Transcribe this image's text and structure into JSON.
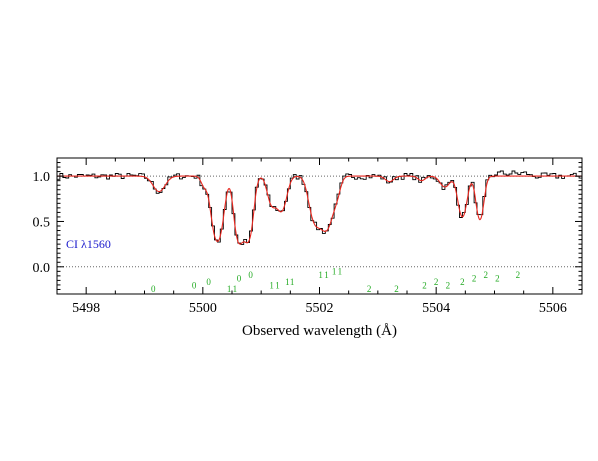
{
  "chart_data": {
    "type": "line",
    "title": "",
    "xlabel": "Observed wavelength (Å)",
    "ylabel": "",
    "xlim": [
      5497.5,
      5506.5
    ],
    "ylim": [
      -0.3,
      1.2
    ],
    "x_ticks": [
      "5498",
      "5500",
      "5502",
      "5504",
      "5506"
    ],
    "x_tick_values": [
      5498,
      5500,
      5502,
      5504,
      5506
    ],
    "y_ticks": [
      "0.0",
      "0.5",
      "1.0"
    ],
    "y_tick_values": [
      0.0,
      0.5,
      1.0
    ],
    "reference_lines": [
      0.0,
      1.0
    ],
    "annotation": "CI λ1560",
    "colors": {
      "data": "#000000",
      "model": "#e8261e",
      "component_markers": "#22aa22",
      "annotation": "#1a1acc",
      "reference": "#666666"
    },
    "continuum_level": 1.0,
    "absorption_features": [
      {
        "center": 5499.25,
        "depth": 0.17,
        "width": 0.1
      },
      {
        "center": 5500.02,
        "depth": 0.1,
        "width": 0.05
      },
      {
        "center": 5500.25,
        "depth": 0.72,
        "width": 0.085
      },
      {
        "center": 5500.62,
        "depth": 0.72,
        "width": 0.07
      },
      {
        "center": 5500.78,
        "depth": 0.7,
        "width": 0.07
      },
      {
        "center": 5501.18,
        "depth": 0.3,
        "width": 0.07
      },
      {
        "center": 5501.35,
        "depth": 0.38,
        "width": 0.08
      },
      {
        "center": 5501.92,
        "depth": 0.48,
        "width": 0.09
      },
      {
        "center": 5502.12,
        "depth": 0.58,
        "width": 0.1
      },
      {
        "center": 5502.3,
        "depth": 0.15,
        "width": 0.06
      },
      {
        "center": 5503.2,
        "depth": 0.06,
        "width": 0.07
      },
      {
        "center": 5503.75,
        "depth": 0.05,
        "width": 0.06
      },
      {
        "center": 5504.15,
        "depth": 0.12,
        "width": 0.08
      },
      {
        "center": 5504.45,
        "depth": 0.45,
        "width": 0.07
      },
      {
        "center": 5504.75,
        "depth": 0.48,
        "width": 0.06
      }
    ],
    "component_markers": [
      {
        "x": 5499.15,
        "label": "0",
        "row": 2
      },
      {
        "x": 5499.85,
        "label": "0",
        "row": 1
      },
      {
        "x": 5500.1,
        "label": "0",
        "row": 0
      },
      {
        "x": 5500.45,
        "label": "1",
        "row": 2
      },
      {
        "x": 5500.55,
        "label": "1",
        "row": 2
      },
      {
        "x": 5500.62,
        "label": "0",
        "row": -1
      },
      {
        "x": 5500.82,
        "label": "0",
        "row": -2
      },
      {
        "x": 5501.18,
        "label": "1",
        "row": 1
      },
      {
        "x": 5501.28,
        "label": "1",
        "row": 1
      },
      {
        "x": 5501.45,
        "label": "1",
        "row": 0
      },
      {
        "x": 5501.53,
        "label": "1",
        "row": 0
      },
      {
        "x": 5502.02,
        "label": "1",
        "row": -2
      },
      {
        "x": 5502.12,
        "label": "1",
        "row": -2
      },
      {
        "x": 5502.25,
        "label": "1",
        "row": -3
      },
      {
        "x": 5502.35,
        "label": "1",
        "row": -3
      },
      {
        "x": 5502.85,
        "label": "2",
        "row": 2
      },
      {
        "x": 5503.32,
        "label": "2",
        "row": 2
      },
      {
        "x": 5503.8,
        "label": "2",
        "row": 1
      },
      {
        "x": 5504.0,
        "label": "2",
        "row": 0
      },
      {
        "x": 5504.2,
        "label": "2",
        "row": 1
      },
      {
        "x": 5504.45,
        "label": "2",
        "row": 0
      },
      {
        "x": 5504.65,
        "label": "2",
        "row": -1
      },
      {
        "x": 5504.85,
        "label": "2",
        "row": -2
      },
      {
        "x": 5505.05,
        "label": "2",
        "row": -1
      },
      {
        "x": 5505.4,
        "label": "2",
        "row": -2
      }
    ]
  }
}
